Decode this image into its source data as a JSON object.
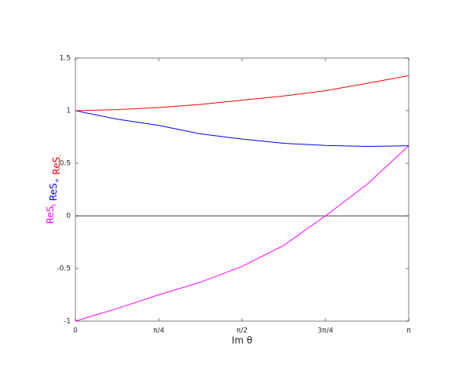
{
  "chart_data": {
    "type": "line",
    "xlabel": "Im θ",
    "x": [
      0,
      0.3927,
      0.7854,
      1.1781,
      1.5708,
      1.9635,
      2.3562,
      2.7489,
      3.1416
    ],
    "series": [
      {
        "name": "ReS",
        "subscript": "I",
        "color": "#ff00ff",
        "values": [
          -1,
          -0.88,
          -0.75,
          -0.63,
          -0.48,
          -0.28,
          0,
          0.3,
          0.667
        ]
      },
      {
        "name": "ReS",
        "subscript": "+",
        "color": "#0000ff",
        "values": [
          1,
          0.92,
          0.86,
          0.78,
          0.73,
          0.69,
          0.67,
          0.66,
          0.667
        ]
      },
      {
        "name": "ReS",
        "subscript": "-",
        "color": "#ff0000",
        "values": [
          1,
          1.01,
          1.03,
          1.06,
          1.1,
          1.14,
          1.19,
          1.26,
          1.333
        ]
      }
    ],
    "xlim": [
      0,
      3.1416
    ],
    "xticks": [
      {
        "value": 0,
        "label": "0"
      },
      {
        "value": 0.7854,
        "label": "π/4"
      },
      {
        "value": 1.5708,
        "label": "π/2"
      },
      {
        "value": 2.3562,
        "label": "3π/4"
      },
      {
        "value": 3.1416,
        "label": "π"
      }
    ],
    "ylim": [
      -1,
      1.5
    ],
    "yticks": [
      -1,
      -0.5,
      0,
      0.5,
      1,
      1.5
    ],
    "reference_line": 0,
    "reference_color": "#000000"
  }
}
